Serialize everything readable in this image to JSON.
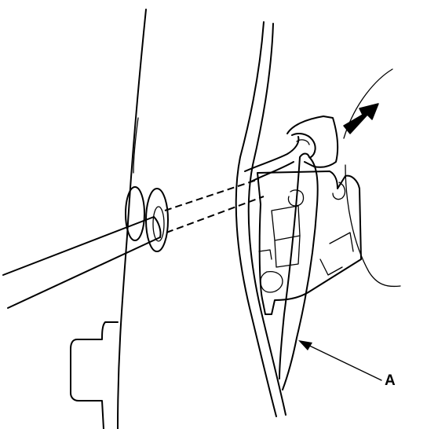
{
  "callouts": [
    {
      "id": "A",
      "label": "A"
    }
  ],
  "colors": {
    "line": "#000000",
    "background": "#ffffff"
  }
}
